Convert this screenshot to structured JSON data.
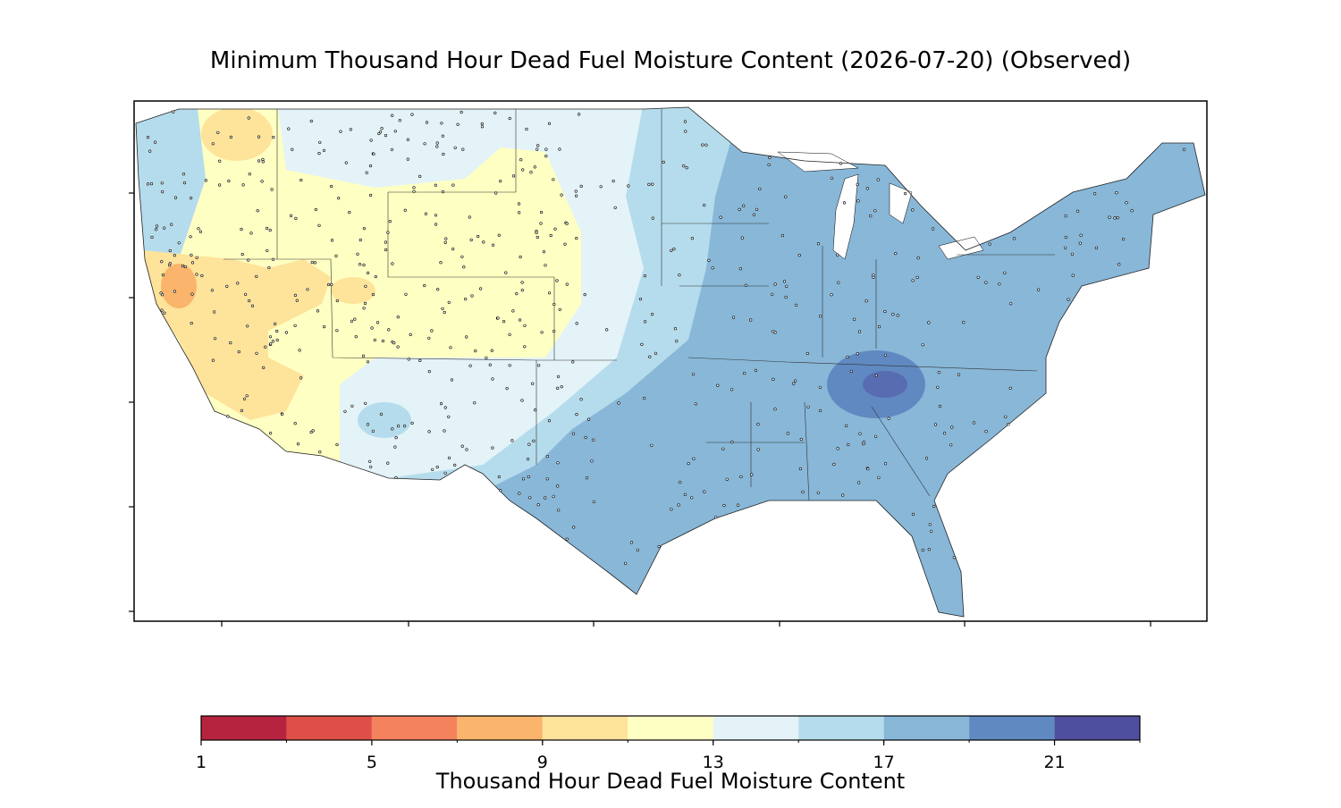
{
  "title": "Minimum Thousand Hour Dead Fuel Moisture Content (2026-07-20) (Observed)",
  "colorbar": {
    "label": "Thousand Hour Dead Fuel Moisture Content",
    "lim": [
      1,
      23
    ],
    "levels": [
      1,
      3,
      5,
      7,
      9,
      11,
      13,
      15,
      17,
      19,
      21,
      23
    ],
    "ticks": [
      1,
      5,
      9,
      13,
      17,
      21
    ],
    "colors": [
      "#b5233e",
      "#dd4f47",
      "#f4835d",
      "#fbb46c",
      "#fee39a",
      "#feffc2",
      "#e3f3f8",
      "#b5dcec",
      "#88b7d8",
      "#6089c2",
      "#4f4f9f"
    ]
  }
}
